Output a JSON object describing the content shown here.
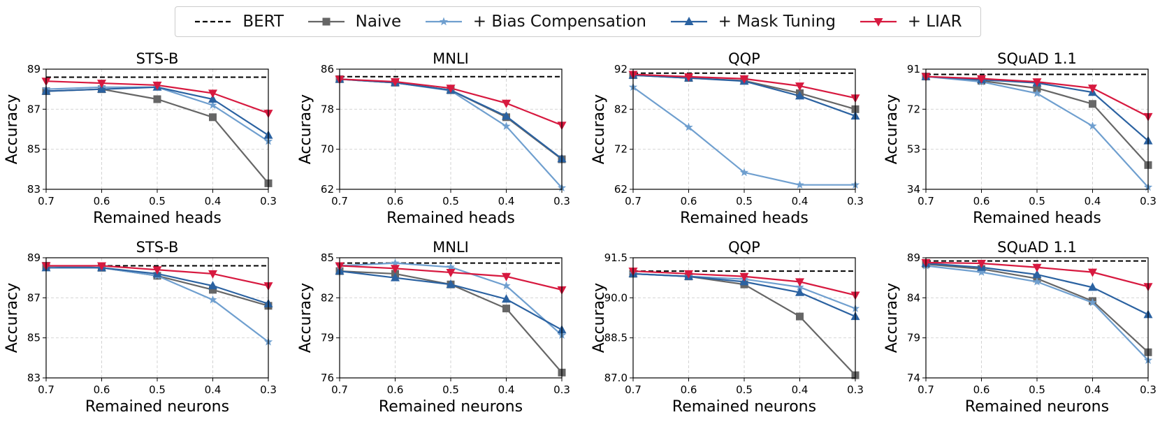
{
  "legend": {
    "items": [
      {
        "name": "BERT",
        "key": "bert"
      },
      {
        "name": "Naive",
        "key": "naive"
      },
      {
        "name": "+ Bias Compensation",
        "key": "bias"
      },
      {
        "name": "+ Mask Tuning",
        "key": "mask"
      },
      {
        "name": "+ LIAR",
        "key": "liar"
      }
    ]
  },
  "styles": {
    "bert": {
      "color": "#000000",
      "dash": true,
      "marker": "none"
    },
    "naive": {
      "color": "#666666",
      "dash": false,
      "marker": "square"
    },
    "bias": {
      "color": "#6f9fcf",
      "dash": false,
      "marker": "star"
    },
    "mask": {
      "color": "#2b62a1",
      "dash": false,
      "marker": "triangle-up"
    },
    "liar": {
      "color": "#d7193f",
      "dash": false,
      "marker": "triangle-down"
    }
  },
  "chart_data": [
    {
      "type": "line",
      "title": "STS-B",
      "xlabel": "Remained heads",
      "ylabel": "Accuracy",
      "x": [
        "0.7",
        "0.6",
        "0.5",
        "0.4",
        "0.3"
      ],
      "ylim": [
        83,
        89
      ],
      "yticks": [
        "83",
        "85",
        "87",
        "89"
      ],
      "grid": true,
      "series": [
        {
          "key": "bert",
          "values": [
            88.6,
            88.6,
            88.6,
            88.6,
            88.6
          ]
        },
        {
          "key": "naive",
          "values": [
            87.9,
            88.0,
            87.5,
            86.6,
            83.3
          ]
        },
        {
          "key": "bias",
          "values": [
            88.0,
            88.1,
            88.1,
            87.2,
            85.4
          ]
        },
        {
          "key": "mask",
          "values": [
            87.9,
            88.0,
            88.1,
            87.5,
            85.7
          ]
        },
        {
          "key": "liar",
          "values": [
            88.4,
            88.3,
            88.2,
            87.8,
            86.8
          ]
        }
      ]
    },
    {
      "type": "line",
      "title": "MNLI",
      "xlabel": "Remained heads",
      "ylabel": "Accuracy",
      "x": [
        "0.7",
        "0.6",
        "0.5",
        "0.4",
        "0.3"
      ],
      "ylim": [
        62,
        86
      ],
      "yticks": [
        "62",
        "70",
        "78",
        "86"
      ],
      "grid": true,
      "series": [
        {
          "key": "bert",
          "values": [
            84.5,
            84.5,
            84.5,
            84.5,
            84.5
          ]
        },
        {
          "key": "naive",
          "values": [
            84.0,
            83.3,
            81.8,
            76.4,
            68.0
          ]
        },
        {
          "key": "bias",
          "values": [
            84.0,
            83.3,
            81.7,
            74.6,
            62.3
          ]
        },
        {
          "key": "mask",
          "values": [
            84.0,
            83.3,
            81.8,
            76.6,
            68.1
          ]
        },
        {
          "key": "liar",
          "values": [
            84.0,
            83.5,
            82.2,
            79.2,
            74.8
          ]
        }
      ]
    },
    {
      "type": "line",
      "title": "QQP",
      "xlabel": "Remained heads",
      "ylabel": "Accuracy",
      "x": [
        "0.7",
        "0.6",
        "0.5",
        "0.4",
        "0.3"
      ],
      "ylim": [
        62,
        92
      ],
      "yticks": [
        "62",
        "72",
        "82",
        "92"
      ],
      "grid": true,
      "series": [
        {
          "key": "bert",
          "values": [
            91.0,
            91.0,
            91.0,
            91.0,
            91.0
          ]
        },
        {
          "key": "naive",
          "values": [
            90.5,
            89.8,
            89.1,
            86.0,
            82.0
          ]
        },
        {
          "key": "bias",
          "values": [
            87.5,
            77.5,
            66.2,
            63.1,
            63.1
          ]
        },
        {
          "key": "mask",
          "values": [
            90.5,
            89.8,
            89.0,
            85.3,
            80.3
          ]
        },
        {
          "key": "liar",
          "values": [
            90.7,
            90.1,
            89.6,
            87.8,
            84.8
          ]
        }
      ]
    },
    {
      "type": "line",
      "title": "SQuAD 1.1",
      "xlabel": "Remained heads",
      "ylabel": "Accuracy",
      "x": [
        "0.7",
        "0.6",
        "0.5",
        "0.4",
        "0.3"
      ],
      "ylim": [
        34,
        91
      ],
      "yticks": [
        "34",
        "53",
        "72",
        "91"
      ],
      "grid": true,
      "series": [
        {
          "key": "bert",
          "values": [
            88.5,
            88.5,
            88.5,
            88.5,
            88.5
          ]
        },
        {
          "key": "naive",
          "values": [
            87.5,
            85.5,
            82.0,
            74.5,
            45.5
          ]
        },
        {
          "key": "bias",
          "values": [
            87.5,
            85.0,
            79.5,
            64.0,
            35.0
          ]
        },
        {
          "key": "mask",
          "values": [
            87.5,
            86.0,
            84.5,
            80.0,
            57.0
          ]
        },
        {
          "key": "liar",
          "values": [
            87.5,
            86.5,
            85.0,
            82.0,
            68.5
          ]
        }
      ]
    },
    {
      "type": "line",
      "title": "STS-B",
      "xlabel": "Remained neurons",
      "ylabel": "Accuracy",
      "x": [
        "0.7",
        "0.6",
        "0.5",
        "0.4",
        "0.3"
      ],
      "ylim": [
        83,
        89
      ],
      "yticks": [
        "83",
        "85",
        "87",
        "89"
      ],
      "grid": true,
      "series": [
        {
          "key": "bert",
          "values": [
            88.6,
            88.6,
            88.6,
            88.6,
            88.6
          ]
        },
        {
          "key": "naive",
          "values": [
            88.6,
            88.5,
            88.1,
            87.4,
            86.6
          ]
        },
        {
          "key": "bias",
          "values": [
            88.6,
            88.5,
            88.1,
            86.9,
            84.8
          ]
        },
        {
          "key": "mask",
          "values": [
            88.5,
            88.5,
            88.2,
            87.6,
            86.7
          ]
        },
        {
          "key": "liar",
          "values": [
            88.6,
            88.6,
            88.4,
            88.2,
            87.6
          ]
        }
      ]
    },
    {
      "type": "line",
      "title": "MNLI",
      "xlabel": "Remained neurons",
      "ylabel": "Accuracy",
      "x": [
        "0.7",
        "0.6",
        "0.5",
        "0.4",
        "0.3"
      ],
      "ylim": [
        76,
        85
      ],
      "yticks": [
        "76",
        "79",
        "82",
        "85"
      ],
      "grid": true,
      "series": [
        {
          "key": "bert",
          "values": [
            84.6,
            84.6,
            84.6,
            84.6,
            84.6
          ]
        },
        {
          "key": "naive",
          "values": [
            84.0,
            83.8,
            83.0,
            81.2,
            76.4
          ]
        },
        {
          "key": "bias",
          "values": [
            84.4,
            84.6,
            84.3,
            82.9,
            79.2
          ]
        },
        {
          "key": "mask",
          "values": [
            84.0,
            83.5,
            83.0,
            81.9,
            79.6
          ]
        },
        {
          "key": "liar",
          "values": [
            84.4,
            84.2,
            83.9,
            83.6,
            82.6
          ]
        }
      ]
    },
    {
      "type": "line",
      "title": "QQP",
      "xlabel": "Remained neurons",
      "ylabel": "Accuracy",
      "x": [
        "0.7",
        "0.6",
        "0.5",
        "0.4",
        "0.3"
      ],
      "ylim": [
        87.0,
        91.5
      ],
      "yticks": [
        "87.0",
        "88.5",
        "90.0",
        "91.5"
      ],
      "grid": true,
      "series": [
        {
          "key": "bert",
          "values": [
            91.0,
            91.0,
            91.0,
            91.0,
            91.0
          ]
        },
        {
          "key": "naive",
          "values": [
            90.9,
            90.8,
            90.5,
            89.3,
            87.1
          ]
        },
        {
          "key": "bias",
          "values": [
            90.9,
            90.8,
            90.7,
            90.4,
            89.6
          ]
        },
        {
          "key": "mask",
          "values": [
            90.9,
            90.8,
            90.6,
            90.2,
            89.3
          ]
        },
        {
          "key": "liar",
          "values": [
            91.0,
            90.9,
            90.8,
            90.6,
            90.1
          ]
        }
      ]
    },
    {
      "type": "line",
      "title": "SQuAD 1.1",
      "xlabel": "Remained neurons",
      "ylabel": "Accuracy",
      "x": [
        "0.7",
        "0.6",
        "0.5",
        "0.4",
        "0.3"
      ],
      "ylim": [
        74,
        89
      ],
      "yticks": [
        "74",
        "79",
        "84",
        "89"
      ],
      "grid": true,
      "series": [
        {
          "key": "bert",
          "values": [
            88.6,
            88.6,
            88.6,
            88.6,
            88.6
          ]
        },
        {
          "key": "naive",
          "values": [
            88.2,
            87.6,
            86.4,
            83.6,
            77.2
          ]
        },
        {
          "key": "bias",
          "values": [
            88.0,
            87.2,
            86.0,
            83.4,
            76.2
          ]
        },
        {
          "key": "mask",
          "values": [
            88.3,
            87.8,
            86.9,
            85.3,
            81.9
          ]
        },
        {
          "key": "liar",
          "values": [
            88.4,
            88.3,
            87.8,
            87.2,
            85.4
          ]
        }
      ]
    }
  ]
}
